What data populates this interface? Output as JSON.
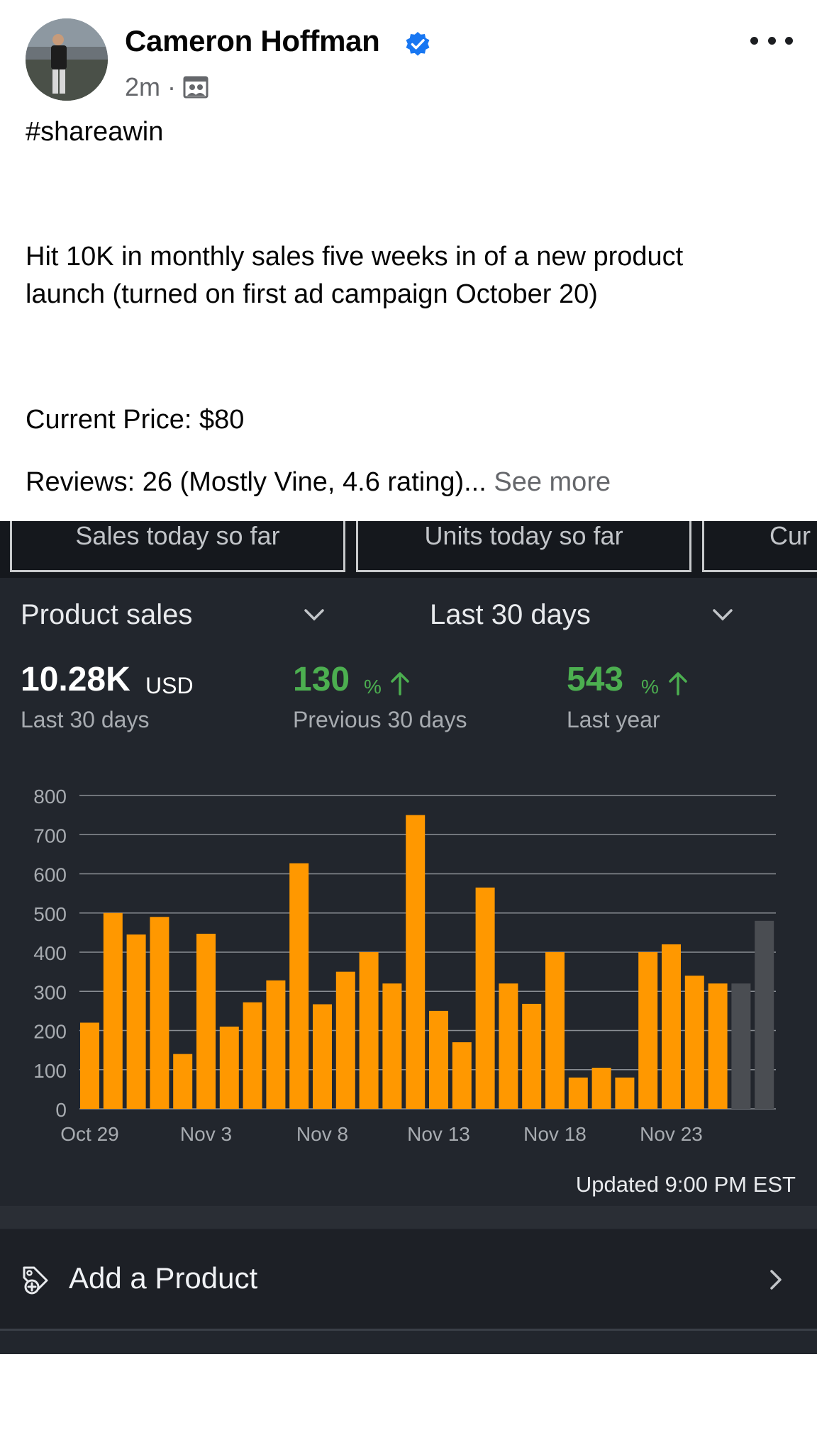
{
  "post": {
    "author": "Cameron Hoffman",
    "time": "2m",
    "separator": "·",
    "hashtag": "#shareawin",
    "line1": "Hit 10K in monthly sales five weeks in of a new product",
    "line2": "launch (turned on first ad campaign October 20)",
    "line3": "Current Price: $80",
    "line4": "Reviews: 26 (Mostly Vine, 4.6 rating)...",
    "see_more": "See more"
  },
  "app": {
    "metric_tabs": [
      "Sales today so far",
      "Units today so far",
      "Cur"
    ],
    "dropdown_metric": "Product sales",
    "dropdown_range": "Last 30 days",
    "stats": {
      "total_value": "10.28K",
      "total_unit": "USD",
      "total_label": "Last 30 days",
      "prev_value": "130",
      "prev_sym": "%",
      "prev_label": "Previous 30 days",
      "year_value": "543",
      "year_sym": "%",
      "year_label": "Last year"
    },
    "updated": "Updated 9:00 PM EST",
    "add_product": "Add a Product"
  },
  "colors": {
    "bar_primary": "#ff9800",
    "bar_current": "#4a4d52",
    "positive": "#4caf50",
    "verified": "#1877f2"
  },
  "chart_data": {
    "type": "bar",
    "ylim": [
      0,
      800
    ],
    "yticks": [
      0,
      100,
      200,
      300,
      400,
      500,
      600,
      700,
      800
    ],
    "xtick_labels": [
      "Oct 29",
      "Nov 3",
      "Nov 8",
      "Nov 13",
      "Nov 18",
      "Nov 23"
    ],
    "xtick_index": [
      0,
      5,
      10,
      15,
      20,
      25
    ],
    "series": [
      {
        "color": "#ff9800",
        "values": [
          220,
          500,
          445,
          490,
          140,
          447,
          210,
          272,
          328,
          627,
          267,
          350,
          400,
          320,
          750,
          250,
          170,
          565,
          320,
          268,
          400,
          80,
          105,
          80,
          400,
          420,
          340,
          320
        ]
      },
      {
        "color": "#4a4d52",
        "values": [
          null,
          null,
          null,
          null,
          null,
          null,
          null,
          null,
          null,
          null,
          null,
          null,
          null,
          null,
          null,
          null,
          null,
          null,
          null,
          null,
          null,
          null,
          null,
          null,
          null,
          null,
          null,
          null,
          320,
          480
        ]
      }
    ]
  }
}
